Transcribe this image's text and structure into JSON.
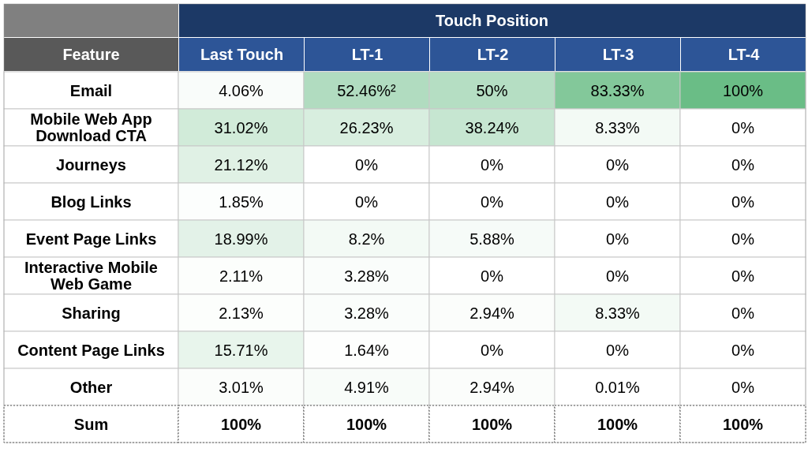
{
  "chart_data": {
    "type": "heatmap",
    "xlabel": "Touch Position",
    "ylabel": "Feature",
    "categories": [
      "Last Touch",
      "LT-1",
      "LT-2",
      "LT-3",
      "LT-4"
    ],
    "y_categories": [
      "Email",
      "Mobile Web App Download CTA",
      "Journeys",
      "Blog Links",
      "Event Page Links",
      "Interactive Mobile Web Game",
      "Sharing",
      "Content Page Links",
      "Other",
      "Sum"
    ],
    "cells": [
      [
        4.06,
        52.46,
        50,
        83.33,
        100
      ],
      [
        31.02,
        26.23,
        38.24,
        8.33,
        0
      ],
      [
        21.12,
        0,
        0,
        0,
        0
      ],
      [
        1.85,
        0,
        0,
        0,
        0
      ],
      [
        18.99,
        8.2,
        5.88,
        0,
        0
      ],
      [
        2.11,
        3.28,
        0,
        0,
        0
      ],
      [
        2.13,
        3.28,
        2.94,
        8.33,
        0
      ],
      [
        15.71,
        1.64,
        0,
        0,
        0
      ],
      [
        3.01,
        4.91,
        2.94,
        0.01,
        0
      ],
      [
        null,
        null,
        null,
        null,
        null
      ]
    ],
    "cell_labels": [
      [
        "4.06%",
        "52.46%²",
        "50%",
        "83.33%",
        "100%"
      ],
      [
        "31.02%",
        "26.23%",
        "38.24%",
        "8.33%",
        "0%"
      ],
      [
        "21.12%",
        "0%",
        "0%",
        "0%",
        "0%"
      ],
      [
        "1.85%",
        "0%",
        "0%",
        "0%",
        "0%"
      ],
      [
        "18.99%",
        "8.2%",
        "5.88%",
        "0%",
        "0%"
      ],
      [
        "2.11%",
        "3.28%",
        "0%",
        "0%",
        "0%"
      ],
      [
        "2.13%",
        "3.28%",
        "2.94%",
        "8.33%",
        "0%"
      ],
      [
        "15.71%",
        "1.64%",
        "0%",
        "0%",
        "0%"
      ],
      [
        "3.01%",
        "4.91%",
        "2.94%",
        "0.01%",
        "0%"
      ],
      [
        "100%",
        "100%",
        "100%",
        "100%",
        "100%"
      ]
    ]
  }
}
